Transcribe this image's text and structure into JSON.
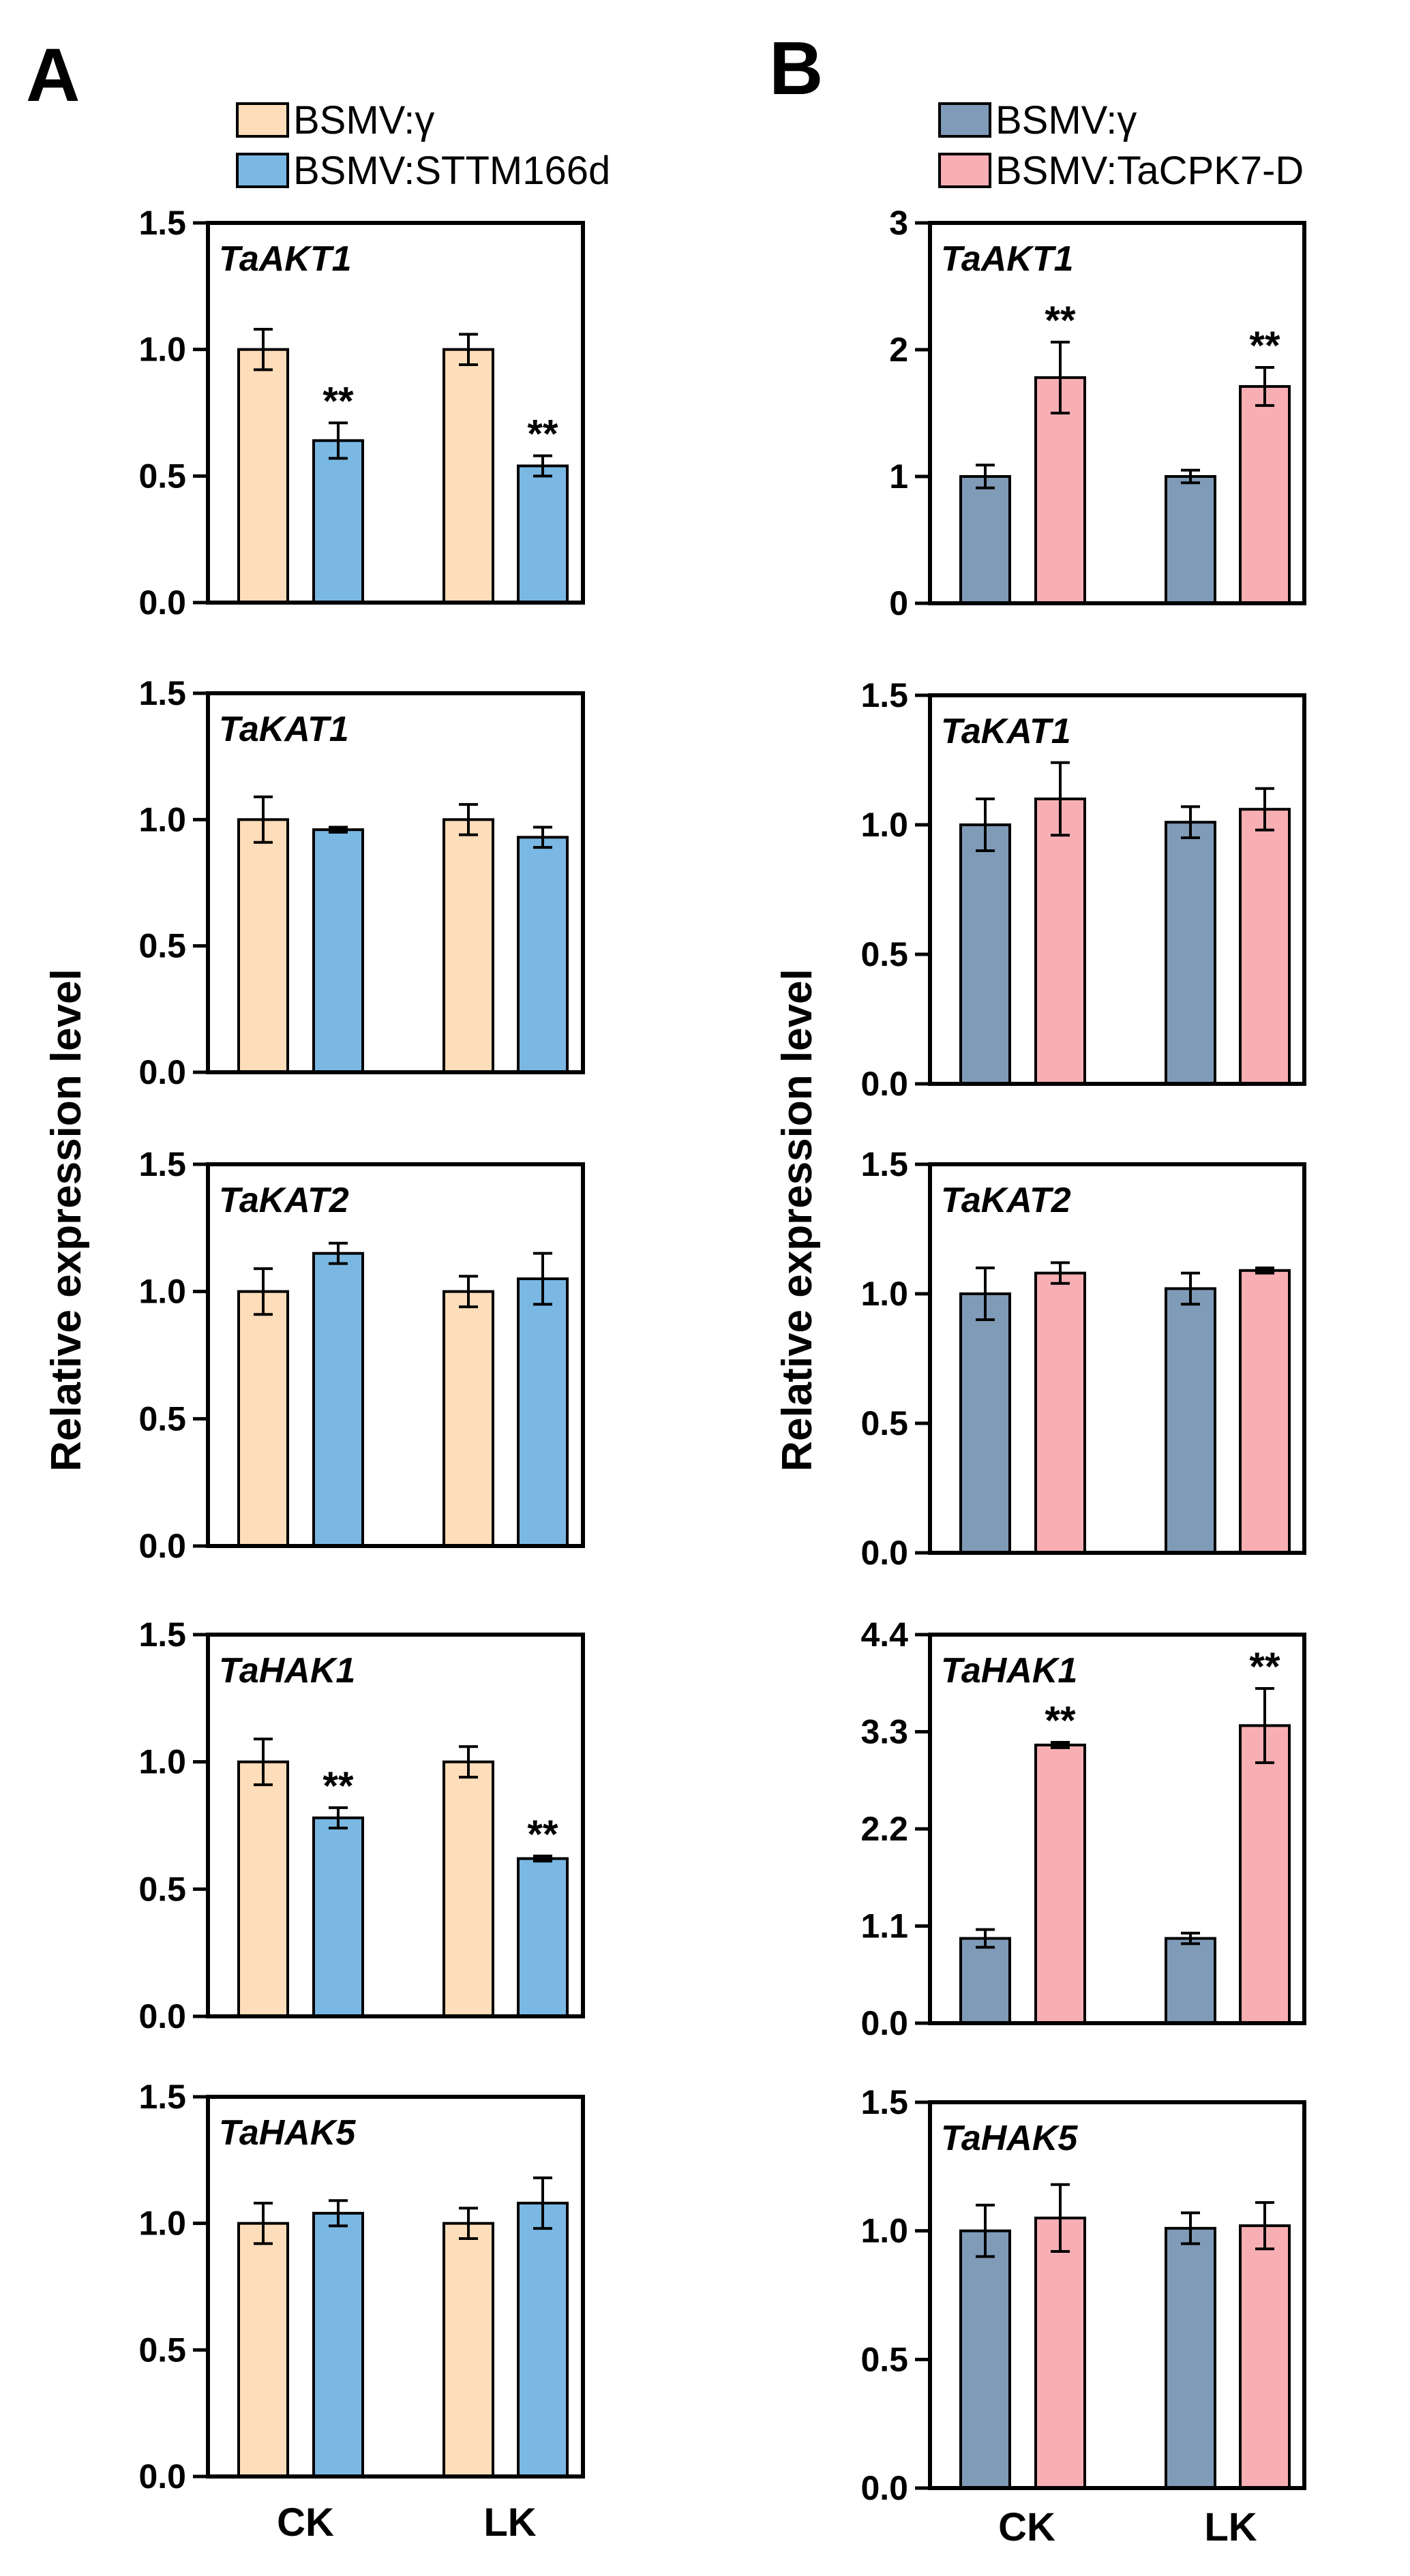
{
  "colors": {
    "a_control": "#FDDDBA",
    "a_treatment": "#7AB8E3",
    "b_control": "#7F9BB8",
    "b_treatment": "#F8AFB4"
  },
  "panels": [
    {
      "letter": "A",
      "ylabel": "Relative expression level",
      "legend": [
        "BSMV:γ",
        "BSMV:STTM166d"
      ]
    },
    {
      "letter": "B",
      "ylabel": "Relative expression level",
      "legend": [
        "BSMV:γ",
        "BSMV:TaCPK7-D"
      ]
    }
  ],
  "chart_data": [
    {
      "panel": "A",
      "type": "bar",
      "title": "TaAKT1",
      "categories": [
        "CK",
        "LK"
      ],
      "ylim": [
        0,
        1.5
      ],
      "yticks": [
        "0.0",
        "0.5",
        "1.0",
        "1.5"
      ],
      "series": [
        {
          "name": "BSMV:γ",
          "values": [
            1.0,
            1.0
          ],
          "errors": [
            0.08,
            0.06
          ]
        },
        {
          "name": "BSMV:STTM166d",
          "values": [
            0.64,
            0.54
          ],
          "errors": [
            0.07,
            0.04
          ]
        }
      ],
      "significance": [
        {
          "category": 0,
          "series": 1,
          "label": "**"
        },
        {
          "category": 1,
          "series": 1,
          "label": "**"
        }
      ]
    },
    {
      "panel": "A",
      "type": "bar",
      "title": "TaKAT1",
      "categories": [
        "CK",
        "LK"
      ],
      "ylim": [
        0,
        1.5
      ],
      "yticks": [
        "0.0",
        "0.5",
        "1.0",
        "1.5"
      ],
      "series": [
        {
          "name": "BSMV:γ",
          "values": [
            1.0,
            1.0
          ],
          "errors": [
            0.09,
            0.06
          ]
        },
        {
          "name": "BSMV:STTM166d",
          "values": [
            0.96,
            0.93
          ],
          "errors": [
            0.01,
            0.04
          ]
        }
      ],
      "significance": []
    },
    {
      "panel": "A",
      "type": "bar",
      "title": "TaKAT2",
      "categories": [
        "CK",
        "LK"
      ],
      "ylim": [
        0,
        1.5
      ],
      "yticks": [
        "0.0",
        "0.5",
        "1.0",
        "1.5"
      ],
      "series": [
        {
          "name": "BSMV:γ",
          "values": [
            1.0,
            1.0
          ],
          "errors": [
            0.09,
            0.06
          ]
        },
        {
          "name": "BSMV:STTM166d",
          "values": [
            1.15,
            1.05
          ],
          "errors": [
            0.04,
            0.1
          ]
        }
      ],
      "significance": []
    },
    {
      "panel": "A",
      "type": "bar",
      "title": "TaHAK1",
      "categories": [
        "CK",
        "LK"
      ],
      "ylim": [
        0,
        1.5
      ],
      "yticks": [
        "0.0",
        "0.5",
        "1.0",
        "1.5"
      ],
      "series": [
        {
          "name": "BSMV:γ",
          "values": [
            1.0,
            1.0
          ],
          "errors": [
            0.09,
            0.06
          ]
        },
        {
          "name": "BSMV:STTM166d",
          "values": [
            0.78,
            0.62
          ],
          "errors": [
            0.04,
            0.01
          ]
        }
      ],
      "significance": [
        {
          "category": 0,
          "series": 1,
          "label": "**"
        },
        {
          "category": 1,
          "series": 1,
          "label": "**"
        }
      ]
    },
    {
      "panel": "A",
      "type": "bar",
      "title": "TaHAK5",
      "categories": [
        "CK",
        "LK"
      ],
      "ylim": [
        0,
        1.5
      ],
      "yticks": [
        "0.0",
        "0.5",
        "1.0",
        "1.5"
      ],
      "series": [
        {
          "name": "BSMV:γ",
          "values": [
            1.0,
            1.0
          ],
          "errors": [
            0.08,
            0.06
          ]
        },
        {
          "name": "BSMV:STTM166d",
          "values": [
            1.04,
            1.08
          ],
          "errors": [
            0.05,
            0.1
          ]
        }
      ],
      "significance": []
    },
    {
      "panel": "B",
      "type": "bar",
      "title": "TaAKT1",
      "categories": [
        "CK",
        "LK"
      ],
      "ylim": [
        0,
        3
      ],
      "yticks": [
        "0",
        "1",
        "2",
        "3"
      ],
      "series": [
        {
          "name": "BSMV:γ",
          "values": [
            1.0,
            1.0
          ],
          "errors": [
            0.09,
            0.05
          ]
        },
        {
          "name": "BSMV:TaCPK7-D",
          "values": [
            1.78,
            1.71
          ],
          "errors": [
            0.28,
            0.15
          ]
        }
      ],
      "significance": [
        {
          "category": 0,
          "series": 1,
          "label": "**"
        },
        {
          "category": 1,
          "series": 1,
          "label": "**"
        }
      ]
    },
    {
      "panel": "B",
      "type": "bar",
      "title": "TaKAT1",
      "categories": [
        "CK",
        "LK"
      ],
      "ylim": [
        0,
        1.5
      ],
      "yticks": [
        "0.0",
        "0.5",
        "1.0",
        "1.5"
      ],
      "series": [
        {
          "name": "BSMV:γ",
          "values": [
            1.0,
            1.01
          ],
          "errors": [
            0.1,
            0.06
          ]
        },
        {
          "name": "BSMV:TaCPK7-D",
          "values": [
            1.1,
            1.06
          ],
          "errors": [
            0.14,
            0.08
          ]
        }
      ],
      "significance": []
    },
    {
      "panel": "B",
      "type": "bar",
      "title": "TaKAT2",
      "categories": [
        "CK",
        "LK"
      ],
      "ylim": [
        0,
        1.5
      ],
      "yticks": [
        "0.0",
        "0.5",
        "1.0",
        "1.5"
      ],
      "series": [
        {
          "name": "BSMV:γ",
          "values": [
            1.0,
            1.02
          ],
          "errors": [
            0.1,
            0.06
          ]
        },
        {
          "name": "BSMV:TaCPK7-D",
          "values": [
            1.08,
            1.09
          ],
          "errors": [
            0.04,
            0.01
          ]
        }
      ],
      "significance": []
    },
    {
      "panel": "B",
      "type": "bar",
      "title": "TaHAK1",
      "categories": [
        "CK",
        "LK"
      ],
      "ylim": [
        0,
        4.4
      ],
      "yticks": [
        "0.0",
        "1.1",
        "2.2",
        "3.3",
        "4.4"
      ],
      "series": [
        {
          "name": "BSMV:γ",
          "values": [
            0.96,
            0.96
          ],
          "errors": [
            0.1,
            0.06
          ]
        },
        {
          "name": "BSMV:TaCPK7-D",
          "values": [
            3.15,
            3.37
          ],
          "errors": [
            0.03,
            0.42
          ]
        }
      ],
      "significance": [
        {
          "category": 0,
          "series": 1,
          "label": "**"
        },
        {
          "category": 1,
          "series": 1,
          "label": "**"
        }
      ]
    },
    {
      "panel": "B",
      "type": "bar",
      "title": "TaHAK5",
      "categories": [
        "CK",
        "LK"
      ],
      "ylim": [
        0,
        1.5
      ],
      "yticks": [
        "0.0",
        "0.5",
        "1.0",
        "1.5"
      ],
      "series": [
        {
          "name": "BSMV:γ",
          "values": [
            1.0,
            1.01
          ],
          "errors": [
            0.1,
            0.06
          ]
        },
        {
          "name": "BSMV:TaCPK7-D",
          "values": [
            1.05,
            1.02
          ],
          "errors": [
            0.13,
            0.09
          ]
        }
      ],
      "significance": []
    }
  ]
}
